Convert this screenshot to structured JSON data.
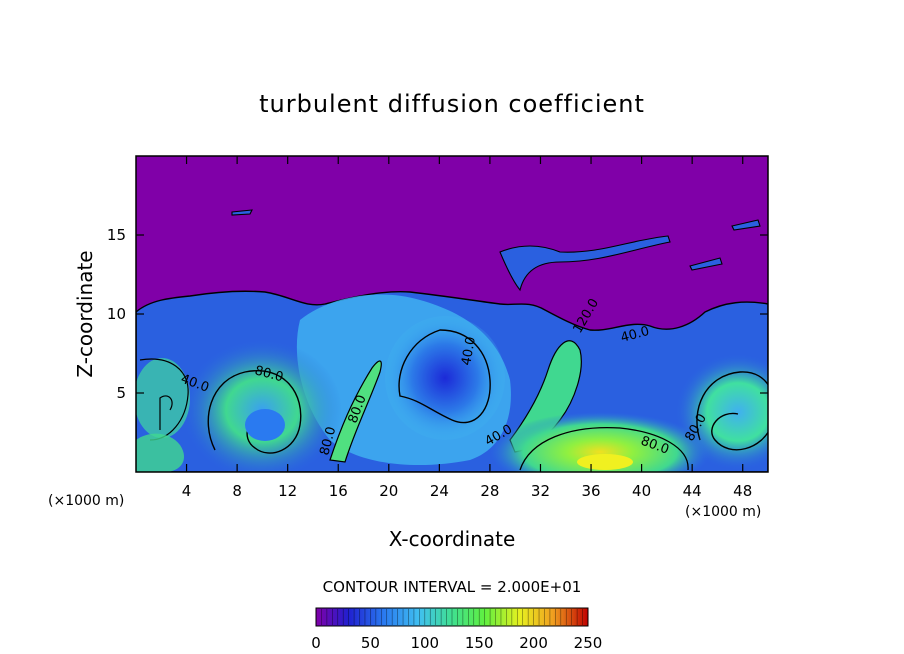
{
  "chart_data": {
    "type": "heatmap",
    "title": "turbulent diffusion coefficient",
    "xlabel": "X-coordinate",
    "ylabel": "Z-coordinate",
    "x_unit": "(×1000 m)",
    "y_unit": "(×1000 m)",
    "xlim": [
      0,
      50
    ],
    "ylim": [
      0,
      20
    ],
    "x_ticks": [
      4,
      8,
      12,
      16,
      20,
      24,
      28,
      32,
      36,
      40,
      44,
      48
    ],
    "y_ticks": [
      5,
      10,
      15
    ],
    "contour_interval": "CONTOUR INTERVAL = 2.000E+01",
    "contour_labels": [
      "40.0",
      "80.0",
      "80.0",
      "80.0",
      "40.0",
      "40.0",
      "120.0",
      "80.0",
      "40.0",
      "80.0"
    ],
    "colorbar": {
      "min": 0,
      "max": 250,
      "ticks": [
        0,
        50,
        100,
        150,
        200,
        250
      ],
      "colors": [
        "#8000a8",
        "#2020d0",
        "#2a7af0",
        "#40c0f0",
        "#40e090",
        "#60f040",
        "#e8f020",
        "#f0a020",
        "#e03020",
        "#c00000"
      ]
    },
    "field": {
      "stable_region_value": 0,
      "turbulent_layer_top": 11.5,
      "features": [
        {
          "name": "left-eddy",
          "x": 9.5,
          "z": 4.0,
          "peak": 120
        },
        {
          "name": "central-plume",
          "x": 24,
          "z": 5.5,
          "peak": 60
        },
        {
          "name": "right-eddy",
          "x": 47,
          "z": 4.0,
          "peak": 110
        },
        {
          "name": "shear-column",
          "x": 33.5,
          "z": 6.5,
          "peak": 100
        },
        {
          "name": "surface-max",
          "x": 36,
          "z": 0.8,
          "peak": 200
        }
      ]
    }
  }
}
